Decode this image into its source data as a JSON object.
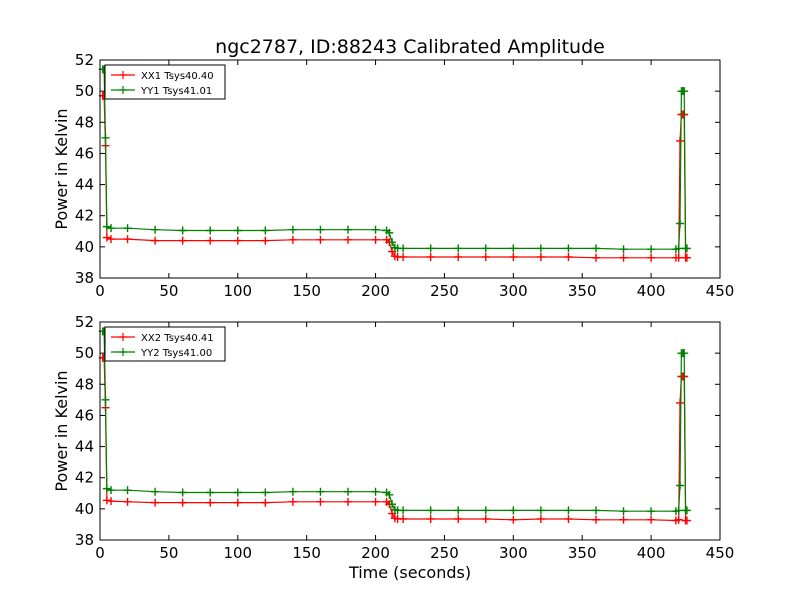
{
  "figure": {
    "title": "ngc2787, ID:88243 Calibrated Amplitude",
    "xlabel": "Time (seconds)"
  },
  "chart_data": [
    {
      "type": "line",
      "title": "ngc2787, ID:88243 Calibrated Amplitude",
      "xlabel": "",
      "ylabel": "Power in Kelvin",
      "xlim": [
        0,
        450
      ],
      "ylim": [
        38,
        52
      ],
      "xticks": [
        "0",
        "50",
        "100",
        "150",
        "200",
        "250",
        "300",
        "350",
        "400",
        "450"
      ],
      "yticks": [
        "38",
        "40",
        "42",
        "44",
        "46",
        "48",
        "50",
        "52"
      ],
      "grid": false,
      "legend_position": "top-left",
      "series": [
        {
          "name": "XX1 Tsys40.40",
          "color": "#ff0000",
          "marker": "plus",
          "x": [
            2,
            3,
            4,
            5,
            8,
            20,
            40,
            60,
            80,
            100,
            120,
            140,
            160,
            180,
            200,
            208,
            210,
            212,
            214,
            216,
            220,
            240,
            260,
            280,
            300,
            320,
            340,
            360,
            380,
            400,
            418,
            420,
            421,
            422,
            423,
            424,
            425,
            426
          ],
          "y": [
            49.7,
            49.7,
            46.5,
            40.6,
            40.5,
            40.5,
            40.4,
            40.4,
            40.4,
            40.4,
            40.4,
            40.45,
            40.45,
            40.45,
            40.45,
            40.45,
            40.3,
            39.7,
            39.4,
            39.35,
            39.35,
            39.35,
            39.35,
            39.35,
            39.35,
            39.35,
            39.35,
            39.3,
            39.3,
            39.3,
            39.3,
            39.3,
            46.8,
            48.5,
            48.5,
            48.5,
            39.3,
            39.3
          ]
        },
        {
          "name": "YY1 Tsys41.01",
          "color": "#008000",
          "marker": "plus",
          "x": [
            2,
            3,
            4,
            5,
            8,
            20,
            40,
            60,
            80,
            100,
            120,
            140,
            160,
            180,
            200,
            208,
            210,
            212,
            214,
            216,
            220,
            240,
            260,
            280,
            300,
            320,
            340,
            360,
            380,
            400,
            418,
            420,
            421,
            422,
            423,
            424,
            425,
            426
          ],
          "y": [
            51.4,
            51.4,
            47.0,
            41.3,
            41.2,
            41.2,
            41.1,
            41.05,
            41.05,
            41.05,
            41.05,
            41.1,
            41.1,
            41.1,
            41.1,
            41.05,
            40.9,
            40.3,
            39.95,
            39.9,
            39.9,
            39.9,
            39.9,
            39.9,
            39.9,
            39.9,
            39.9,
            39.9,
            39.85,
            39.85,
            39.85,
            39.9,
            41.5,
            50.0,
            50.0,
            50.0,
            39.9,
            39.9
          ]
        }
      ]
    },
    {
      "type": "line",
      "title": "",
      "xlabel": "Time (seconds)",
      "ylabel": "Power in Kelvin",
      "xlim": [
        0,
        450
      ],
      "ylim": [
        38,
        52
      ],
      "xticks": [
        "0",
        "50",
        "100",
        "150",
        "200",
        "250",
        "300",
        "350",
        "400",
        "450"
      ],
      "yticks": [
        "38",
        "40",
        "42",
        "44",
        "46",
        "48",
        "50",
        "52"
      ],
      "grid": false,
      "legend_position": "top-left",
      "series": [
        {
          "name": "XX2 Tsys40.41",
          "color": "#ff0000",
          "marker": "plus",
          "x": [
            2,
            3,
            4,
            5,
            8,
            20,
            40,
            60,
            80,
            100,
            120,
            140,
            160,
            180,
            200,
            208,
            210,
            212,
            214,
            216,
            220,
            240,
            260,
            280,
            300,
            320,
            340,
            360,
            380,
            400,
            418,
            420,
            421,
            422,
            423,
            424,
            425,
            426
          ],
          "y": [
            49.7,
            49.7,
            46.5,
            40.55,
            40.5,
            40.45,
            40.4,
            40.4,
            40.4,
            40.4,
            40.4,
            40.45,
            40.45,
            40.45,
            40.45,
            40.45,
            40.3,
            39.7,
            39.4,
            39.35,
            39.35,
            39.35,
            39.35,
            39.35,
            39.3,
            39.35,
            39.35,
            39.3,
            39.3,
            39.3,
            39.25,
            39.3,
            46.8,
            48.5,
            48.5,
            48.5,
            39.25,
            39.25
          ]
        },
        {
          "name": "YY2 Tsys41.00",
          "color": "#008000",
          "marker": "plus",
          "x": [
            2,
            3,
            4,
            5,
            8,
            20,
            40,
            60,
            80,
            100,
            120,
            140,
            160,
            180,
            200,
            208,
            210,
            212,
            214,
            216,
            220,
            240,
            260,
            280,
            300,
            320,
            340,
            360,
            380,
            400,
            418,
            420,
            421,
            422,
            423,
            424,
            425,
            426
          ],
          "y": [
            51.4,
            51.4,
            47.0,
            41.3,
            41.2,
            41.2,
            41.1,
            41.05,
            41.05,
            41.05,
            41.05,
            41.1,
            41.1,
            41.1,
            41.1,
            41.05,
            40.9,
            40.3,
            39.95,
            39.9,
            39.9,
            39.9,
            39.9,
            39.9,
            39.9,
            39.9,
            39.9,
            39.9,
            39.85,
            39.85,
            39.85,
            39.9,
            41.5,
            50.0,
            50.0,
            50.0,
            39.9,
            39.9
          ]
        }
      ]
    }
  ]
}
